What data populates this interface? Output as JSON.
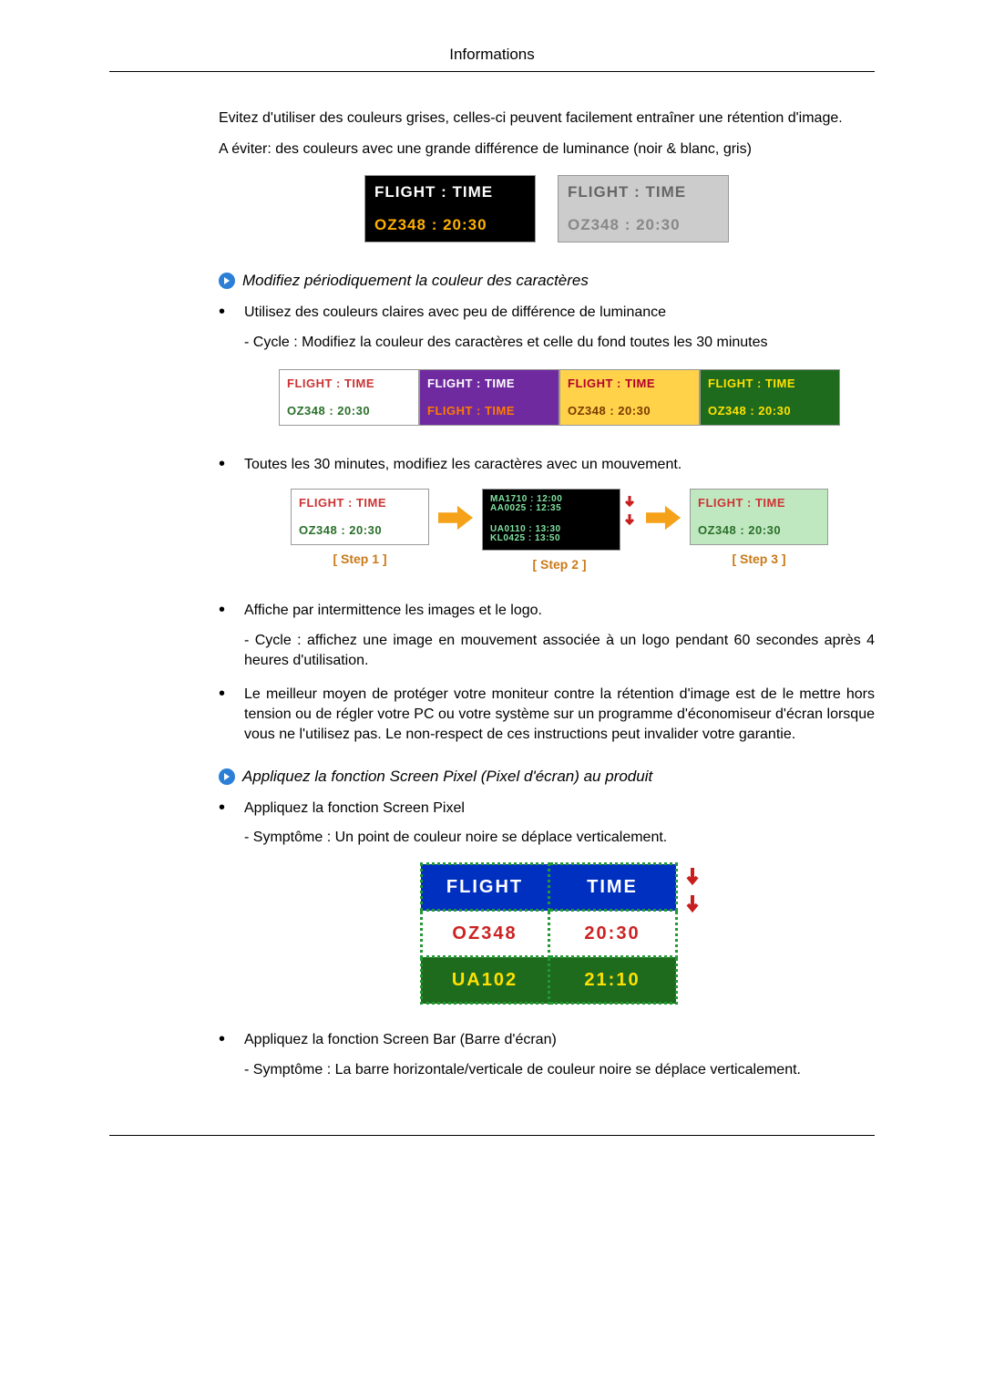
{
  "header_title": "Informations",
  "intro_para_1": "Evitez d'utiliser des couleurs grises, celles-ci peuvent facilement entraîner une rétention d'image.",
  "intro_para_2": "A éviter: des couleurs avec une grande différence de luminance (noir & blanc, gris)",
  "example_pair": {
    "left": {
      "line1": "FLIGHT  :  TIME",
      "line2": "OZ348    :  20:30",
      "bg": "#000000",
      "line1_color": "#ffffff",
      "line2_color": "#ffb000"
    },
    "right": {
      "line1": "FLIGHT  :  TIME",
      "line2": "OZ348    :  20:30",
      "bg": "#cccccc",
      "line1_color": "#666666",
      "line2_color": "#888888"
    }
  },
  "section1_title": "Modifiez périodiquement la couleur des caractères",
  "section1_bullet1": "Utilisez des couleurs claires avec peu de différence de luminance",
  "section1_sub1": "- Cycle : Modifiez la couleur des caractères et celle du fond toutes les 30 minutes",
  "color_cycle": [
    {
      "bg": "#ffffff",
      "t1": "FLIGHT : TIME",
      "c1": "#cc3333",
      "t2": "OZ348   : 20:30",
      "c2": "#2a6f2a"
    },
    {
      "bg": "#6f2aa0",
      "t1": "FLIGHT : TIME",
      "c1": "#ffffff",
      "t2": "FLIGHT : TIME",
      "c2": "#ff7b00"
    },
    {
      "bg": "#ffd24a",
      "t1": "FLIGHT  :  TIME",
      "c1": "#b3002d",
      "t2": "OZ348   : 20:30",
      "c2": "#7a3a00"
    },
    {
      "bg": "#1e6b1e",
      "t1": "FLIGHT  :  TIME",
      "c1": "#ffe100",
      "t2": "OZ348   : 20:30",
      "c2": "#ffe100"
    }
  ],
  "section1_bullet2": "Toutes les 30 minutes, modifiez les caractères avec un mouvement.",
  "steps": {
    "step1": {
      "label": "[  Step 1  ]",
      "lines": [
        {
          "t": "FLIGHT  :  TIME",
          "c": "#cc3333",
          "bg": "#ffffff"
        },
        {
          "t": "OZ348   : 20:30",
          "c": "#2a6f2a",
          "bg": "#ffffff"
        }
      ]
    },
    "step2": {
      "label": "[  Step 2  ]",
      "lines": [
        {
          "t": "AA0025 : 12:35",
          "c": "#7fe3a0",
          "bg": "#000000",
          "tsmall": "MA1710 : 12:00"
        },
        {
          "t": "KL0425 : 13:50",
          "c": "#7fe3a0",
          "bg": "#000000",
          "tsmall": "UA0110 : 13:30"
        }
      ]
    },
    "step3": {
      "label": "[  Step 3  ]",
      "lines": [
        {
          "t": "FLIGHT  :  TIME",
          "c": "#cc3333",
          "bg": "#c0e8c0"
        },
        {
          "t": "OZ348    : 20:30",
          "c": "#2a6f2a",
          "bg": "#c0e8c0"
        }
      ]
    },
    "arrow_color": "#f5a21a"
  },
  "section1_bullet3": "Affiche par intermittence les images et le logo.",
  "section1_sub3": "- Cycle : affichez une image en mouvement associée à un logo pendant 60 secondes après 4 heures d'utilisation.",
  "section1_bullet4": "Le meilleur moyen de protéger votre moniteur contre la rétention d'image est de le mettre hors tension ou de régler votre PC ou votre système sur un programme d'économiseur d'écran lorsque vous ne l'utilisez pas. Le non-respect de ces instructions peut invalider votre garantie.",
  "section2_title": "Appliquez la fonction Screen Pixel (Pixel d'écran) au produit",
  "section2_bullet1": "Appliquez la fonction Screen Pixel",
  "section2_sub1": "- Symptôme : Un point de couleur noire se déplace verticalement.",
  "pixel_table": {
    "headers": [
      "FLIGHT",
      "TIME"
    ],
    "rows": [
      [
        "OZ348",
        "20:30"
      ],
      [
        "UA102",
        "21:10"
      ]
    ],
    "header_bg": "#0030c0",
    "header_color": "#ffffff",
    "row1_bg": "#ffffff",
    "row1_color": "#cc2222",
    "row2_bg": "#1e6b1e",
    "row2_color": "#ffe100",
    "border_color": "#229933",
    "dash_color": "#c81e1e"
  },
  "section2_bullet2": "Appliquez la fonction Screen Bar (Barre d'écran)",
  "section2_sub2": "- Symptôme : La barre horizontale/verticale de couleur noire se déplace verticalement."
}
